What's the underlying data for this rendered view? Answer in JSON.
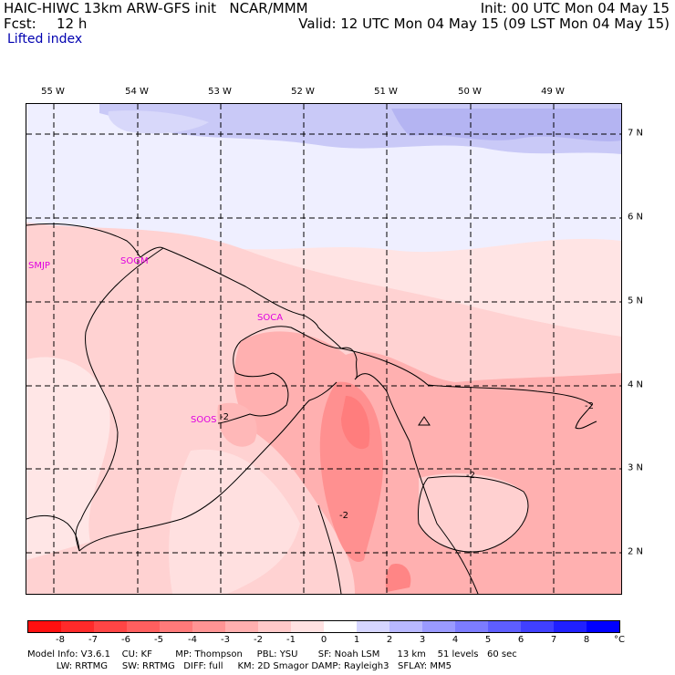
{
  "header": {
    "title": "HAIC-HIWC 13km ARW-GFS init   NCAR/MMM",
    "init": "Init: 00 UTC Mon 04 May 15",
    "fcst_label": "Fcst:",
    "fcst_value": "12 h",
    "valid": "Valid: 12 UTC Mon 04 May 15 (09 LST Mon 04 May 15)",
    "field": "Lifted index"
  },
  "map": {
    "lon_labels": [
      "55 W",
      "54 W",
      "53 W",
      "52 W",
      "51 W",
      "50 W",
      "49 W"
    ],
    "lat_labels": [
      "7 N",
      "6 N",
      "5 N",
      "4 N",
      "3 N",
      "2 N"
    ],
    "stations": [
      "SMJP",
      "SOGM",
      "SOCA",
      "SOOS"
    ],
    "contour_labels": [
      "-2",
      "-2",
      "-2",
      "-2"
    ]
  },
  "legend": {
    "labels": [
      "-8",
      "-7",
      "-6",
      "-5",
      "-4",
      "-3",
      "-2",
      "-1",
      "0",
      "1",
      "2",
      "3",
      "4",
      "5",
      "6",
      "7",
      "8"
    ],
    "unit": "°C",
    "colors": [
      "#ff1010",
      "#ff2a2a",
      "#ff4545",
      "#ff5f5f",
      "#ff7a7a",
      "#ff9494",
      "#ffafaf",
      "#ffc9c9",
      "#ffe2e2",
      "#ffffff",
      "#d6d6ff",
      "#b8b8ff",
      "#9a9aff",
      "#7c7cff",
      "#5e5eff",
      "#4040ff",
      "#2020ff",
      "#0000ff"
    ]
  },
  "footer": {
    "line1": "Model Info: V3.6.1    CU: KF        MP: Thompson     PBL: YSU       SF: Noah LSM      13 km    51 levels   60 sec",
    "line2": "          LW: RRTMG     SW: RRTMG   DIFF: full     KM: 2D Smagor DAMP: Rayleigh3   SFLAY: MM5"
  }
}
